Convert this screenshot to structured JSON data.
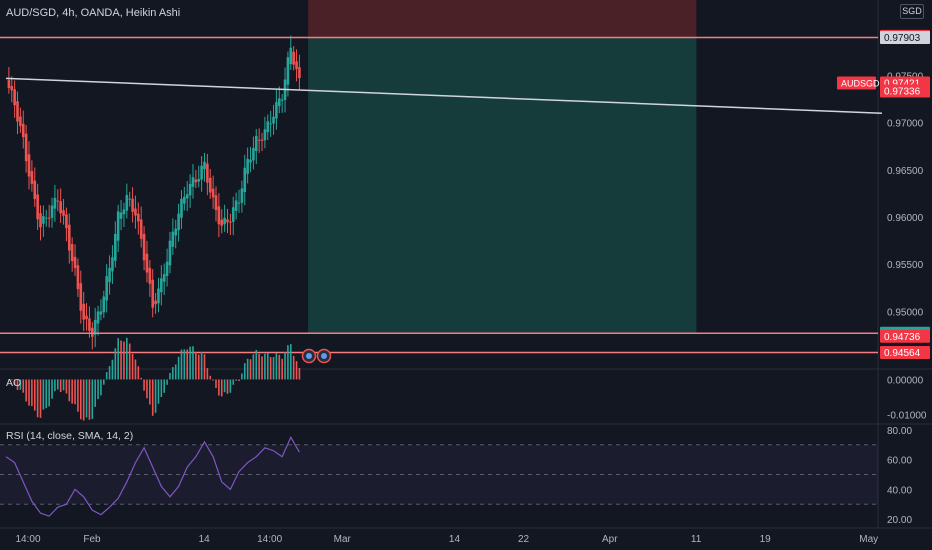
{
  "header": {
    "title": "AUD/SGD, 4h, OANDA, Heikin Ashi",
    "currency": "SGD"
  },
  "colors": {
    "background": "#131722",
    "up": "#26a69a",
    "down": "#ef5350",
    "level_line": "#f77c80",
    "trend_line": "#d1d4dc",
    "rsi": "#7e57c2",
    "stop_zone": "#4d2228",
    "target_zone": "#163d3d",
    "grid": "#1e222d",
    "text": "#b2b5be"
  },
  "chart_data": [
    {
      "type": "candlestick",
      "pane": "price",
      "title": "AUD/SGD, 4h, OANDA, Heikin Ashi",
      "ylim": [
        0.944,
        0.983
      ],
      "y_ticks": [
        "0.97500",
        "0.97000",
        "0.96500",
        "0.96000",
        "0.95500",
        "0.95000"
      ],
      "x_range": [
        "Jan 23",
        "May 4"
      ],
      "x_ticks": [
        {
          "label": "14:00",
          "x": "Jan 24 14:00"
        },
        {
          "label": "Feb",
          "x": "Feb 1"
        },
        {
          "label": "14",
          "x": "Feb 14"
        },
        {
          "label": "14:00",
          "x": "Feb 21 14:00"
        },
        {
          "label": "Mar",
          "x": "Mar 1"
        },
        {
          "label": "14",
          "x": "Mar 14"
        },
        {
          "label": "22",
          "x": "Mar 22"
        },
        {
          "label": "Apr",
          "x": "Apr 1"
        },
        {
          "label": "11",
          "x": "Apr 11"
        },
        {
          "label": "19",
          "x": "Apr 19"
        },
        {
          "label": "May",
          "x": "May 1"
        }
      ],
      "candle_path": [
        {
          "day": 0,
          "close": 0.9745
        },
        {
          "day": 1,
          "close": 0.972
        },
        {
          "day": 2,
          "close": 0.968
        },
        {
          "day": 3,
          "close": 0.963
        },
        {
          "day": 4,
          "close": 0.959
        },
        {
          "day": 5,
          "close": 0.9605
        },
        {
          "day": 6,
          "close": 0.962
        },
        {
          "day": 7,
          "close": 0.9585
        },
        {
          "day": 8,
          "close": 0.954
        },
        {
          "day": 9,
          "close": 0.949
        },
        {
          "day": 10,
          "close": 0.9478
        },
        {
          "day": 11,
          "close": 0.9505
        },
        {
          "day": 12,
          "close": 0.9545
        },
        {
          "day": 13,
          "close": 0.96
        },
        {
          "day": 14,
          "close": 0.962
        },
        {
          "day": 15,
          "close": 0.9605
        },
        {
          "day": 16,
          "close": 0.956
        },
        {
          "day": 17,
          "close": 0.9505
        },
        {
          "day": 18,
          "close": 0.953
        },
        {
          "day": 19,
          "close": 0.957
        },
        {
          "day": 20,
          "close": 0.9605
        },
        {
          "day": 21,
          "close": 0.963
        },
        {
          "day": 22,
          "close": 0.964
        },
        {
          "day": 23,
          "close": 0.9655
        },
        {
          "day": 24,
          "close": 0.9615
        },
        {
          "day": 25,
          "close": 0.959
        },
        {
          "day": 26,
          "close": 0.96
        },
        {
          "day": 27,
          "close": 0.962
        },
        {
          "day": 28,
          "close": 0.966
        },
        {
          "day": 29,
          "close": 0.968
        },
        {
          "day": 30,
          "close": 0.969
        },
        {
          "day": 31,
          "close": 0.971
        },
        {
          "day": 32,
          "close": 0.973
        },
        {
          "day": 33,
          "close": 0.978
        },
        {
          "day": 34,
          "close": 0.9742
        }
      ],
      "horizontal_levels": [
        {
          "name": "stop-level",
          "y": 0.97903
        },
        {
          "name": "entry-level",
          "y": 0.94768
        },
        {
          "name": "support-level",
          "y": 0.94564
        }
      ],
      "trend_line": {
        "x1": 0,
        "y1": 0.9747,
        "x2": 101.5,
        "y2": 0.971
      },
      "position": {
        "type": "short",
        "x_start": 35,
        "x_end": 80,
        "entry": 0.97903,
        "stop": 0.9833,
        "target": 0.94768
      },
      "price_labels": [
        {
          "text": "0.97914",
          "y": 0.97914,
          "color": "#f23645",
          "tag": ""
        },
        {
          "text": "0.97903",
          "y": 0.97903,
          "color": "#d1d4dc",
          "tag": ""
        },
        {
          "text": "0.97421",
          "y": 0.97421,
          "color": "#f23645",
          "tag": "AUDSGD"
        },
        {
          "text": "0.97336",
          "y": 0.97336,
          "color": "#f23645",
          "tag": ""
        },
        {
          "text": "0.94768",
          "y": 0.94768,
          "color": "#26a69a",
          "tag": ""
        },
        {
          "text": "0.94736",
          "y": 0.94736,
          "color": "#f23645",
          "tag": ""
        },
        {
          "text": "0.94564",
          "y": 0.94564,
          "color": "#f23645",
          "tag": ""
        }
      ]
    },
    {
      "type": "histogram",
      "pane": "ao",
      "title": "AO",
      "ylim": [
        -0.0125,
        0.003
      ],
      "y_ticks": [
        "0.00000",
        "-0.01000"
      ]
    },
    {
      "type": "line",
      "pane": "rsi",
      "title": "RSI (14, close, SMA, 14, 2)",
      "ylim": [
        14,
        84
      ],
      "y_ticks": [
        "80.00",
        "60.00",
        "40.00",
        "20.00"
      ],
      "bands": [
        70,
        50,
        30
      ],
      "values": [
        62,
        58,
        45,
        32,
        24,
        22,
        28,
        30,
        40,
        35,
        26,
        23,
        28,
        34,
        45,
        58,
        68,
        55,
        42,
        35,
        42,
        55,
        62,
        72,
        62,
        45,
        40,
        52,
        58,
        62,
        68,
        66,
        62,
        75,
        65
      ]
    }
  ]
}
